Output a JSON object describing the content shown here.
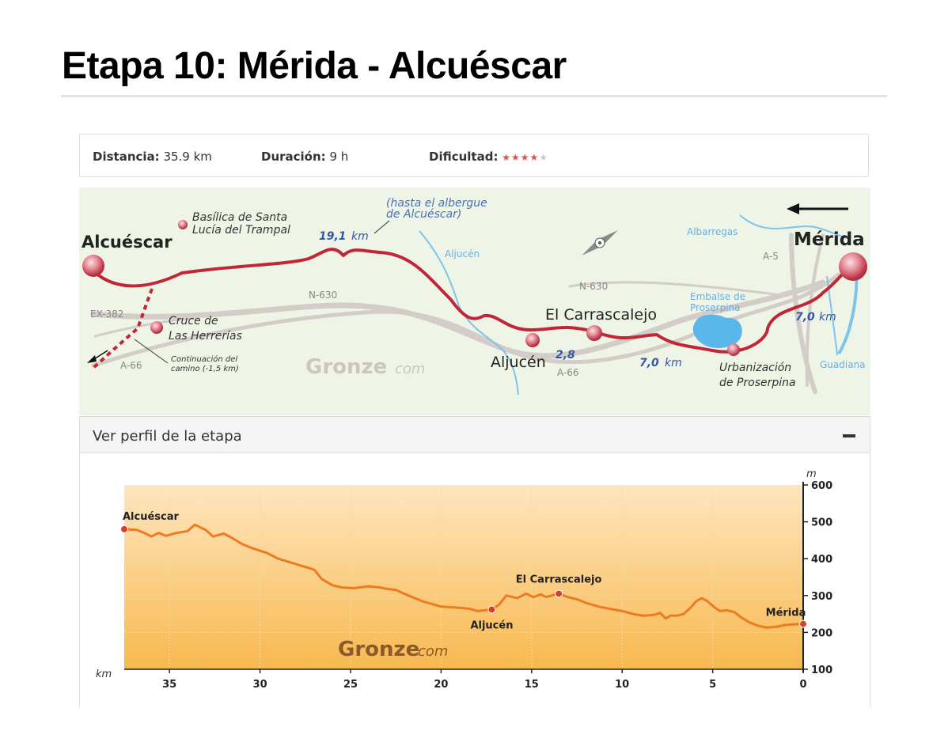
{
  "page": {
    "title": "Etapa 10: Mérida - Alcuéscar"
  },
  "info": {
    "distance_label": "Distancia:",
    "distance_value": "35.9 km",
    "duration_label": "Duración:",
    "duration_value": "9 h",
    "difficulty_label": "Dificultad:",
    "difficulty_rating": 4,
    "difficulty_max": 5
  },
  "map": {
    "places": {
      "alcuescar": "Alcuéscar",
      "merida": "Mérida",
      "aljucen": "Aljucén",
      "carrascalejo": "El Carrascalejo",
      "basilica": [
        "Basílica de Santa",
        "Lucía del Trampal"
      ],
      "cruce": [
        "Cruce de",
        "Las Herrerías"
      ],
      "urbanizacion": [
        "Urbanización",
        "de Proserpina"
      ],
      "continuacion": [
        "Continuación del",
        "camino (-1,5 km)"
      ],
      "albergue": [
        "(hasta el albergue",
        "de Alcuéscar)"
      ]
    },
    "roads": {
      "n630_west": "N-630",
      "n630_east": "N-630",
      "a66_west": "A-66",
      "a66_east": "A-66",
      "ex382": "EX-382",
      "a5": "A-5"
    },
    "water": {
      "aljucen": "Aljucén",
      "albarregas": "Albarregas",
      "embalse": [
        "Embalse de",
        "Proserpina"
      ],
      "guadiana": "Guadiana"
    },
    "distances": {
      "d1": "19,1",
      "d1_unit": "km",
      "d2": "2,8",
      "d3": "7,0",
      "d3_unit": "km",
      "d4": "7,0",
      "d4_unit": "km"
    },
    "watermark": {
      "main": "Gronze",
      "suffix": "com"
    },
    "colors": {
      "route": "#c0283a",
      "road": "#cfc8c4",
      "water": "#6bb7e6",
      "background": "#eef5e6"
    }
  },
  "profile": {
    "header_label": "Ver perfil de la etapa",
    "collapse_icon": "minus-icon",
    "watermark": {
      "main": "Gronze",
      "suffix": "com"
    }
  },
  "chart_data": {
    "type": "area",
    "x_unit": "km",
    "y_unit": "m",
    "xlim": [
      37.5,
      0
    ],
    "ylim": [
      100,
      600
    ],
    "x_ticks": [
      35,
      30,
      25,
      20,
      15,
      10,
      5,
      0
    ],
    "y_ticks": [
      600,
      500,
      400,
      300,
      200,
      100
    ],
    "grid": true,
    "series": [
      {
        "x": [
          37.5,
          36.8,
          36.4,
          36.0,
          35.6,
          35.2,
          34.6,
          34.0,
          33.6,
          33.0,
          32.6,
          32.0,
          31.5,
          31.0,
          30.4,
          29.6,
          29.0,
          28.0,
          27.0,
          26.6,
          26.0,
          25.5,
          24.8,
          24.0,
          23.4,
          23.0,
          22.5,
          21.8,
          21.0,
          20.0,
          19.0,
          18.4,
          18.0,
          17.2,
          16.8,
          16.4,
          15.8,
          15.3,
          14.9,
          14.5,
          14.2,
          13.9,
          13.5,
          13.0,
          12.5,
          12.0,
          11.3,
          10.6,
          10.0,
          9.4,
          8.8,
          8.2,
          7.9,
          7.6,
          7.3,
          7.0,
          6.6,
          6.2,
          5.9,
          5.6,
          5.3,
          4.9,
          4.6,
          4.2,
          3.8,
          3.4,
          3.0,
          2.5,
          2.0,
          1.5,
          1.0,
          0.5,
          0.0
        ],
        "y": [
          480,
          478,
          470,
          460,
          470,
          462,
          470,
          475,
          492,
          478,
          460,
          468,
          455,
          440,
          428,
          415,
          400,
          385,
          370,
          345,
          328,
          322,
          320,
          325,
          322,
          318,
          315,
          300,
          284,
          270,
          267,
          264,
          258,
          262,
          275,
          300,
          293,
          305,
          296,
          303,
          296,
          300,
          305,
          296,
          290,
          280,
          270,
          263,
          258,
          250,
          245,
          248,
          253,
          238,
          246,
          245,
          250,
          268,
          285,
          293,
          285,
          268,
          258,
          260,
          255,
          240,
          228,
          218,
          213,
          215,
          220,
          222,
          223
        ]
      }
    ],
    "annotations": [
      {
        "label": "Alcuéscar",
        "x": 37.5,
        "y": 480
      },
      {
        "label": "Aljucén",
        "x": 17.2,
        "y": 262
      },
      {
        "label": "El Carrascalejo",
        "x": 13.5,
        "y": 305
      },
      {
        "label": "Mérida",
        "x": 0.0,
        "y": 223
      }
    ]
  }
}
